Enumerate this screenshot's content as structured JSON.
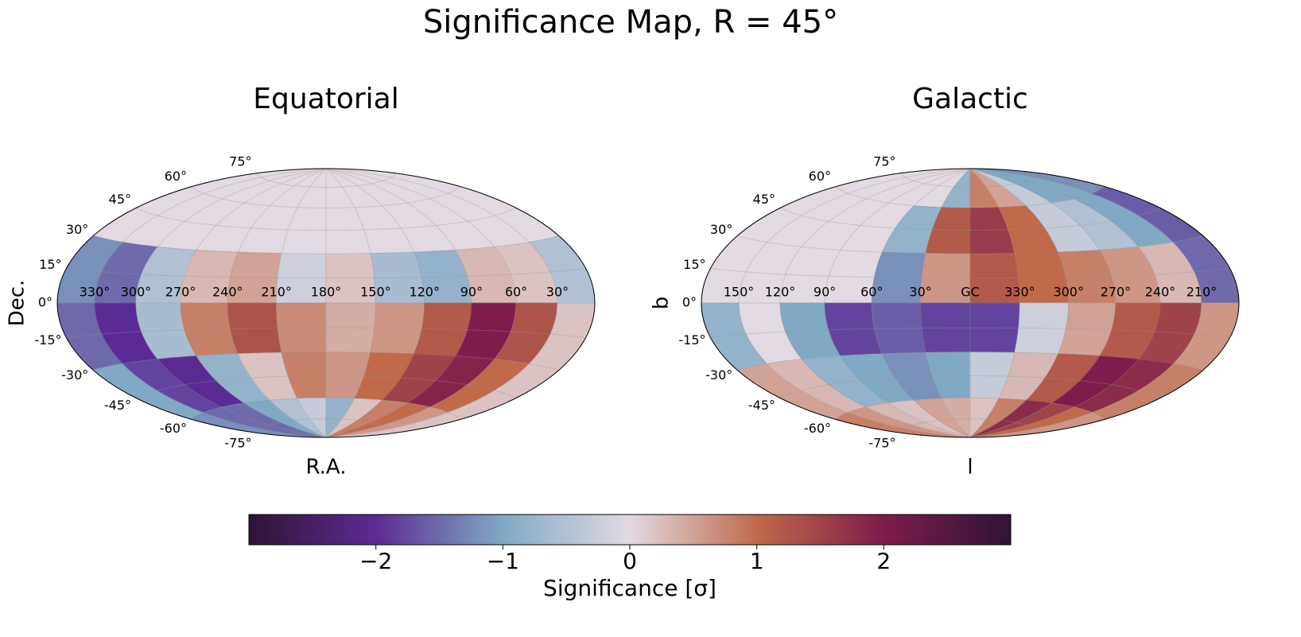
{
  "title": "Significance Map, R = 45°",
  "chart_data": [
    {
      "type": "heatmap",
      "projection": "hammer",
      "frame": "equatorial",
      "title": "Equatorial",
      "xlabel": "R.A.",
      "ylabel": "Dec.",
      "grid": true,
      "mask_color": "#e2d9e2",
      "lon_edges": [
        360,
        330,
        300,
        270,
        240,
        210,
        180,
        150,
        120,
        90,
        60,
        30,
        0
      ],
      "lat_edges": [
        90,
        60,
        30,
        0,
        -30,
        -60,
        -90
      ],
      "z": [
        [
          null,
          null,
          null,
          null,
          null,
          null,
          null,
          null,
          null,
          null,
          null,
          null
        ],
        [
          null,
          null,
          null,
          null,
          null,
          null,
          null,
          null,
          null,
          null,
          null,
          null
        ],
        [
          -1.2,
          -1.5,
          -0.5,
          0.3,
          0.5,
          -0.2,
          0.2,
          -0.6,
          -0.8,
          0.3,
          0.2,
          -0.5
        ],
        [
          -1.5,
          -2.0,
          -0.6,
          0.8,
          1.3,
          0.7,
          0.4,
          0.6,
          1.2,
          2.0,
          1.3,
          0.2
        ],
        [
          -1.0,
          -1.8,
          -2.0,
          -0.8,
          0.2,
          0.8,
          0.6,
          1.0,
          1.5,
          1.9,
          1.0,
          0.2
        ],
        [
          -1.2,
          -1.5,
          -1.5,
          -1.0,
          -0.5,
          -0.3,
          -0.8,
          0.2,
          0.8,
          1.0,
          0.6,
          0.2
        ]
      ],
      "xticks": [
        {
          "value": 330,
          "label": "330°"
        },
        {
          "value": 300,
          "label": "300°"
        },
        {
          "value": 270,
          "label": "270°"
        },
        {
          "value": 240,
          "label": "240°"
        },
        {
          "value": 210,
          "label": "210°"
        },
        {
          "value": 180,
          "label": "180°"
        },
        {
          "value": 150,
          "label": "150°"
        },
        {
          "value": 120,
          "label": "120°"
        },
        {
          "value": 90,
          "label": "90°"
        },
        {
          "value": 60,
          "label": "60°"
        },
        {
          "value": 30,
          "label": "30°"
        }
      ],
      "yticks": [
        {
          "value": 75,
          "label": "75°"
        },
        {
          "value": 60,
          "label": "60°"
        },
        {
          "value": 45,
          "label": "45°"
        },
        {
          "value": 30,
          "label": "30°"
        },
        {
          "value": 15,
          "label": "15°"
        },
        {
          "value": 0,
          "label": "0°"
        },
        {
          "value": -15,
          "label": "-15°"
        },
        {
          "value": -30,
          "label": "-30°"
        },
        {
          "value": -45,
          "label": "-45°"
        },
        {
          "value": -60,
          "label": "-60°"
        },
        {
          "value": -75,
          "label": "-75°"
        }
      ]
    },
    {
      "type": "heatmap",
      "projection": "hammer",
      "frame": "galactic",
      "title": "Galactic",
      "xlabel": "l",
      "ylabel": "b",
      "grid": true,
      "mask_color": "#e2d9e2",
      "lon_edges": [
        180,
        150,
        120,
        90,
        60,
        30,
        0,
        -30,
        -60,
        -90,
        -120,
        -150,
        -180
      ],
      "lat_edges": [
        90,
        60,
        30,
        0,
        -30,
        -60,
        -90
      ],
      "z": [
        [
          null,
          null,
          null,
          null,
          null,
          -0.8,
          0.8,
          0.5,
          -0.3,
          -1.0,
          -1.0,
          -1.2
        ],
        [
          null,
          null,
          null,
          null,
          -0.8,
          1.2,
          1.6,
          1.0,
          -0.3,
          -0.5,
          -1.0,
          -1.6
        ],
        [
          null,
          null,
          null,
          null,
          -1.2,
          0.6,
          1.2,
          1.0,
          0.8,
          0.6,
          0.3,
          -1.5
        ],
        [
          -0.8,
          null,
          -1.0,
          -1.8,
          -1.6,
          -1.8,
          -1.8,
          -0.2,
          0.5,
          1.2,
          1.5,
          0.6
        ],
        [
          0.5,
          0.3,
          -0.8,
          -1.0,
          -1.2,
          -1.0,
          -0.3,
          0.3,
          1.2,
          2.0,
          1.8,
          0.8
        ],
        [
          0.8,
          0.6,
          0.3,
          0.2,
          0.5,
          0.4,
          0.2,
          0.8,
          1.8,
          1.5,
          1.0,
          0.6
        ]
      ],
      "xticks": [
        {
          "value": 150,
          "label": "150°"
        },
        {
          "value": 120,
          "label": "120°"
        },
        {
          "value": 90,
          "label": "90°"
        },
        {
          "value": 60,
          "label": "60°"
        },
        {
          "value": 30,
          "label": "30°"
        },
        {
          "value": 0,
          "label": "GC"
        },
        {
          "value": 330,
          "label": "330°"
        },
        {
          "value": 300,
          "label": "300°"
        },
        {
          "value": 270,
          "label": "270°"
        },
        {
          "value": 240,
          "label": "240°"
        },
        {
          "value": 210,
          "label": "210°"
        }
      ],
      "yticks": [
        {
          "value": 75,
          "label": "75°"
        },
        {
          "value": 60,
          "label": "60°"
        },
        {
          "value": 45,
          "label": "45°"
        },
        {
          "value": 30,
          "label": "30°"
        },
        {
          "value": 15,
          "label": "15°"
        },
        {
          "value": 0,
          "label": "0°"
        },
        {
          "value": -15,
          "label": "-15°"
        },
        {
          "value": -30,
          "label": "-30°"
        },
        {
          "value": -45,
          "label": "-45°"
        },
        {
          "value": -60,
          "label": "-60°"
        },
        {
          "value": -75,
          "label": "-75°"
        }
      ]
    }
  ],
  "colorbar": {
    "label": "Significance [σ]",
    "clim": [
      -3,
      3
    ],
    "colormap": [
      "#2f1436",
      "#5b2b94",
      "#80a9c4",
      "#e2d9e2",
      "#c06a4a",
      "#7e1c4b",
      "#2f1436"
    ],
    "ticks": [
      {
        "value": -2,
        "label": "−2"
      },
      {
        "value": -1,
        "label": "−1"
      },
      0,
      1,
      2
    ]
  }
}
